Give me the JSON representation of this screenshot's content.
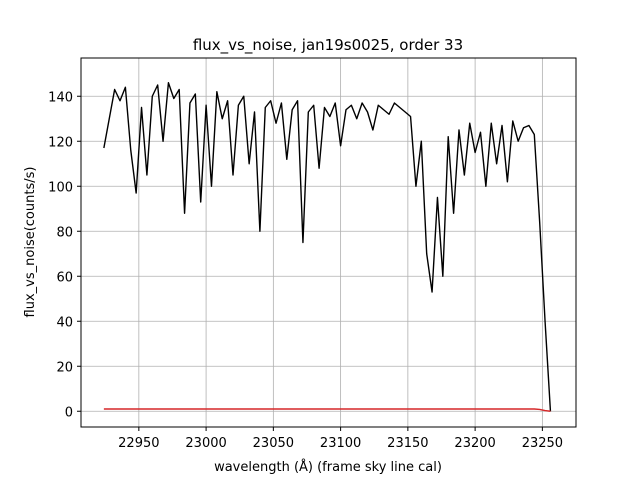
{
  "chart_data": {
    "type": "line",
    "title": "flux_vs_noise, jan19s0025, order 33",
    "xlabel": "wavelength (Å) (frame sky line cal)",
    "ylabel": "flux_vs_noise(counts/s)",
    "x": [
      22924,
      22928,
      22932,
      22936,
      22940,
      22944,
      22948,
      22952,
      22956,
      22960,
      22964,
      22968,
      22972,
      22976,
      22980,
      22984,
      22988,
      22992,
      22996,
      23000,
      23004,
      23008,
      23012,
      23016,
      23020,
      23024,
      23028,
      23032,
      23036,
      23040,
      23044,
      23048,
      23052,
      23056,
      23060,
      23064,
      23068,
      23072,
      23076,
      23080,
      23084,
      23088,
      23092,
      23096,
      23100,
      23104,
      23108,
      23112,
      23116,
      23120,
      23124,
      23128,
      23132,
      23136,
      23140,
      23144,
      23148,
      23152,
      23156,
      23160,
      23164,
      23168,
      23172,
      23176,
      23180,
      23184,
      23188,
      23192,
      23196,
      23200,
      23204,
      23208,
      23212,
      23216,
      23220,
      23224,
      23228,
      23232,
      23236,
      23240,
      23244,
      23248,
      23252,
      23256
    ],
    "series": [
      {
        "color": "#000000",
        "values": [
          117,
          130,
          143,
          138,
          144,
          116,
          97,
          135,
          105,
          140,
          145,
          120,
          146,
          139,
          143,
          88,
          137,
          141,
          93,
          136,
          100,
          142,
          130,
          138,
          105,
          136,
          140,
          110,
          133,
          80,
          135,
          138,
          128,
          137,
          112,
          134,
          138,
          75,
          133,
          136,
          108,
          135,
          131,
          137,
          118,
          134,
          136,
          130,
          137,
          133,
          125,
          136,
          134,
          132,
          137,
          135,
          133,
          131,
          100,
          120,
          70,
          53,
          95,
          60,
          122,
          88,
          125,
          105,
          128,
          115,
          124,
          100,
          128,
          110,
          127,
          102,
          129,
          120,
          126,
          127,
          123,
          84,
          40,
          0
        ]
      },
      {
        "color": "#d62728",
        "values": [
          1,
          1,
          1,
          1,
          1,
          1,
          1,
          1,
          1,
          1,
          1,
          1,
          1,
          1,
          1,
          1,
          1,
          1,
          1,
          1,
          1,
          1,
          1,
          1,
          1,
          1,
          1,
          1,
          1,
          1,
          1,
          1,
          1,
          1,
          1,
          1,
          1,
          1,
          1,
          1,
          1,
          1,
          1,
          1,
          1,
          1,
          1,
          1,
          1,
          1,
          1,
          1,
          1,
          1,
          1,
          1,
          1,
          1,
          1,
          1,
          1,
          1,
          1,
          1,
          1,
          1,
          1,
          1,
          1,
          1,
          1,
          1,
          1,
          1,
          1,
          1,
          1,
          1,
          1,
          1,
          1,
          0.8,
          0.3,
          0
        ]
      }
    ],
    "xlim": [
      22907,
      23275
    ],
    "ylim": [
      -7,
      157
    ],
    "xticks": [
      22950,
      23000,
      23050,
      23100,
      23150,
      23200,
      23250
    ],
    "yticks": [
      0,
      20,
      40,
      60,
      80,
      100,
      120,
      140
    ],
    "grid": true
  }
}
